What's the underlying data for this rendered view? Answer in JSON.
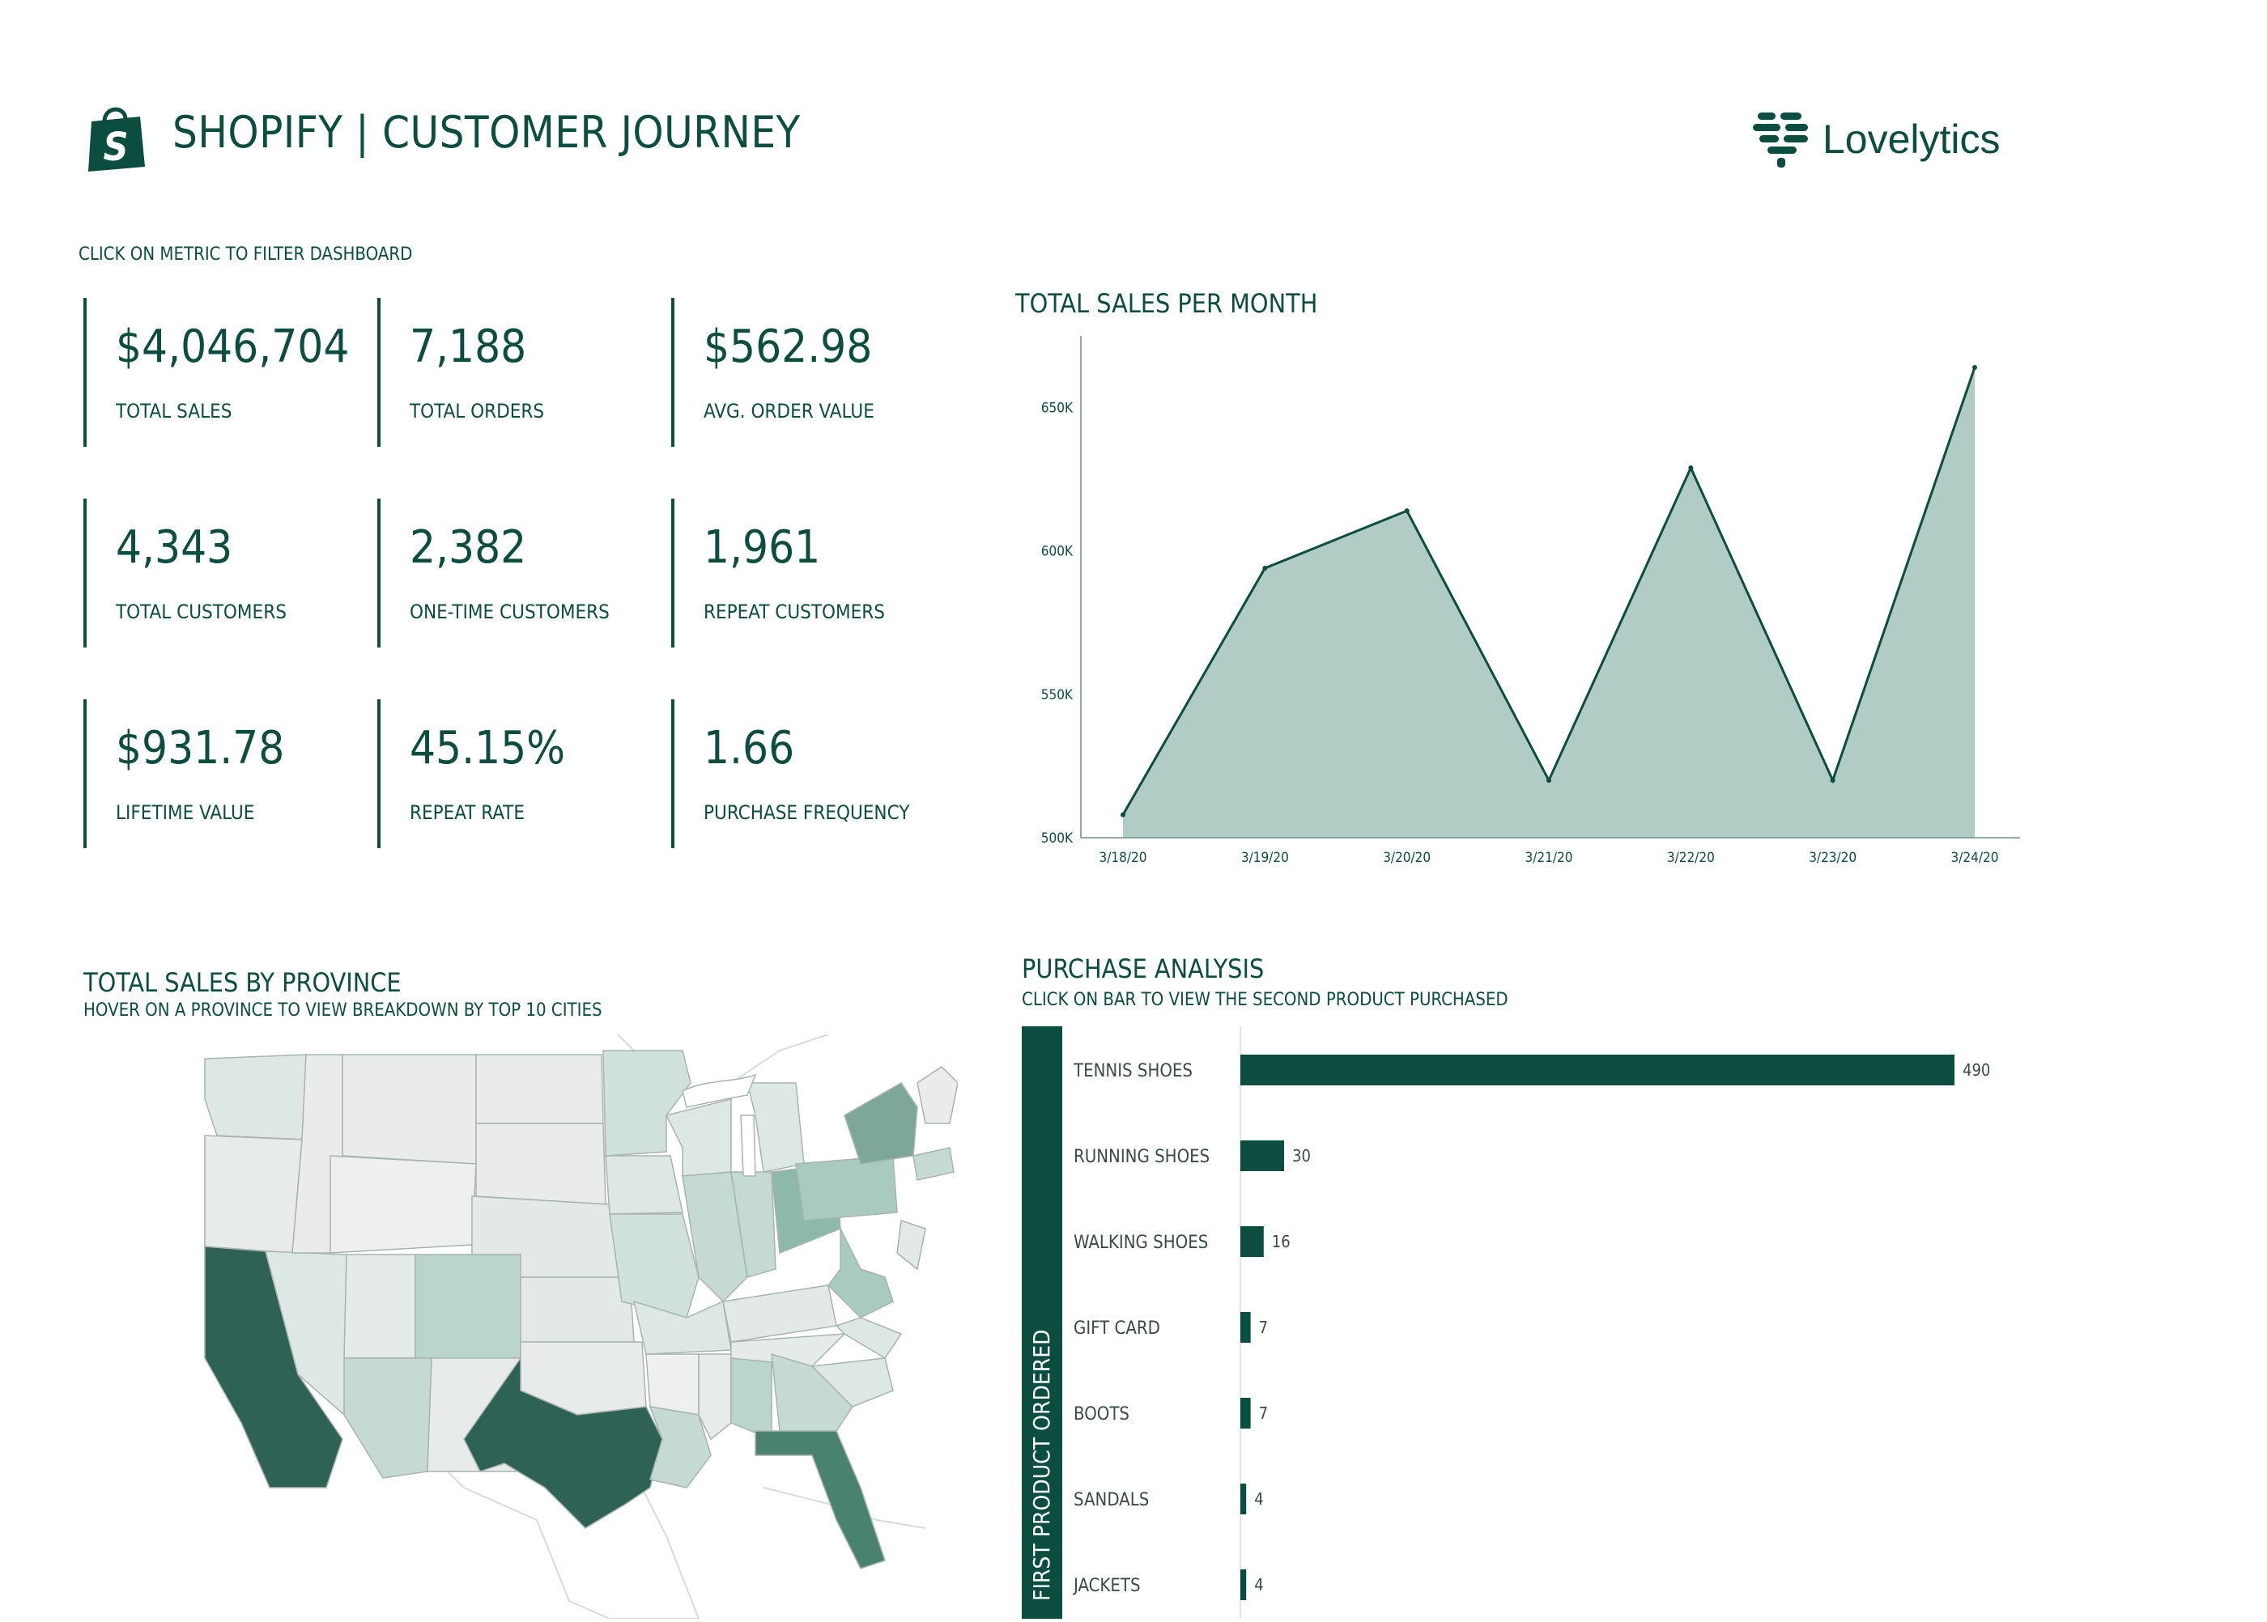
{
  "header": {
    "title": "SHOPIFY | CUSTOMER JOURNEY",
    "brand": "Lovelytics",
    "hint": "CLICK ON METRIC TO FILTER DASHBOARD"
  },
  "kpis": [
    {
      "value": "$4,046,704",
      "label": "TOTAL SALES"
    },
    {
      "value": "7,188",
      "label": "TOTAL ORDERS"
    },
    {
      "value": "$562.98",
      "label": "AVG. ORDER VALUE"
    },
    {
      "value": "4,343",
      "label": "TOTAL CUSTOMERS"
    },
    {
      "value": "2,382",
      "label": "ONE-TIME CUSTOMERS"
    },
    {
      "value": "1,961",
      "label": "REPEAT CUSTOMERS"
    },
    {
      "value": "$931.78",
      "label": "LIFETIME VALUE"
    },
    {
      "value": "45.15%",
      "label": "REPEAT RATE"
    },
    {
      "value": "1.66",
      "label": "PURCHASE FREQUENCY"
    }
  ],
  "line_section": {
    "title": "TOTAL SALES PER MONTH"
  },
  "map_section": {
    "title": "TOTAL SALES BY PROVINCE",
    "subtitle": "HOVER ON A PROVINCE TO VIEW BREAKDOWN BY TOP 10 CITIES"
  },
  "bar_section": {
    "title": "PURCHASE ANALYSIS",
    "subtitle": "CLICK ON BAR TO VIEW THE SECOND PRODUCT PURCHASED"
  },
  "colors": {
    "primary": "#0b4d3f",
    "area_fill": "#b1cbc5",
    "bar": "#0b4d3f"
  },
  "chart_data": [
    {
      "type": "area",
      "title": "TOTAL SALES PER MONTH",
      "x": [
        "3/18/20",
        "3/19/20",
        "3/20/20",
        "3/21/20",
        "3/22/20",
        "3/23/20",
        "3/24/20"
      ],
      "values": [
        508000,
        594000,
        614000,
        520000,
        629000,
        520000,
        664000
      ],
      "ylim": [
        500000,
        675000
      ],
      "yticks": [
        500000,
        550000,
        600000,
        650000
      ],
      "ytick_labels": [
        "500K",
        "550K",
        "600K",
        "650K"
      ],
      "grid": false
    },
    {
      "type": "bar",
      "orientation": "horizontal",
      "title": "PURCHASE ANALYSIS",
      "ylabel": "FIRST PRODUCT ORDERED",
      "categories": [
        "TENNIS SHOES",
        "RUNNING SHOES",
        "WALKING SHOES",
        "GIFT CARD",
        "BOOTS",
        "SANDALS",
        "JACKETS"
      ],
      "values": [
        490,
        30,
        16,
        7,
        7,
        4,
        4
      ],
      "xlim": [
        0,
        500
      ]
    }
  ]
}
